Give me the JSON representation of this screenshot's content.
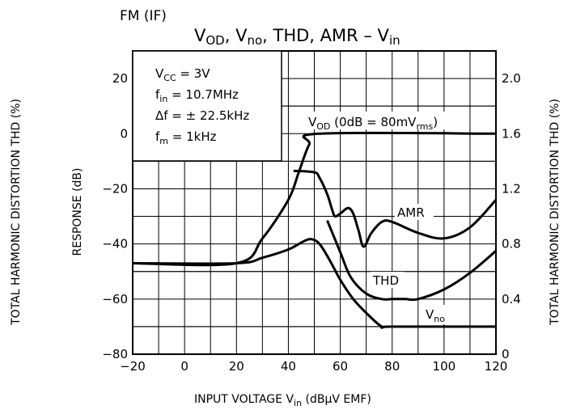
{
  "chart_data": {
    "type": "line",
    "header": "FM (IF)",
    "title": {
      "p1": "V",
      "p1sub": "OD",
      "p2": ", V",
      "p2sub": "no",
      "p3": ", THD, AMR  –  V",
      "p3sub": "in"
    },
    "xlabel": {
      "p1": "INPUT VOLTAGE   V",
      "sub": "in",
      "p2": "   (dBμV EMF)"
    },
    "ylabel_left": "RESPONSE   (dB)",
    "ylabel_right": "TOTAL HARMONIC DISTORTION   THD   (%)",
    "ylabel_outer": "TOTAL HARMONIC DISTORTION   THD   (%)",
    "xlim": [
      -20,
      120
    ],
    "ylim_left": [
      -80,
      30
    ],
    "ylim_right": [
      0,
      2.2
    ],
    "x_ticks": [
      "−20",
      "0",
      "20",
      "40",
      "60",
      "80",
      "100",
      "120"
    ],
    "y_ticks_left": [
      "20",
      "0",
      "−20",
      "−40",
      "−60",
      "−80"
    ],
    "y_ticks_right": [
      "2.0",
      "1.6",
      "1.2",
      "0.8",
      "0.4",
      "0"
    ],
    "conditions": [
      {
        "p1": "V",
        "sub": "CC",
        "p2": " = 3V"
      },
      {
        "p1": "f",
        "sub": "in",
        "p2": " = 10.7MHz"
      },
      {
        "p1": "Δf = ± 22.5kHz",
        "sub": "",
        "p2": ""
      },
      {
        "p1": "f",
        "sub": "m",
        "p2": " = 1kHz"
      }
    ],
    "grid": true,
    "series": [
      {
        "name": "V_OD",
        "label": {
          "p1": "V",
          "sub": "OD",
          "p2": " (0dB = 80mV",
          "sub2": "rms",
          "p3": ")"
        },
        "x": [
          -20,
          20,
          30,
          40,
          44,
          48,
          52,
          120
        ],
        "y": [
          -47,
          -47,
          -38,
          -24,
          -14,
          -4,
          0,
          0
        ]
      },
      {
        "name": "AMR",
        "label": {
          "p1": "AMR",
          "sub": "",
          "p2": ""
        },
        "x": [
          42,
          50,
          52,
          55,
          57,
          58,
          60,
          63,
          65,
          67,
          69,
          72,
          76,
          80,
          90,
          100,
          110,
          120
        ],
        "y": [
          -13.5,
          -14,
          -16,
          -22,
          -28,
          -30,
          -29,
          -27,
          -29,
          -35,
          -41,
          -36,
          -32,
          -32,
          -36,
          -38,
          -34,
          -24
        ]
      },
      {
        "name": "THD",
        "axis": "right",
        "label": {
          "p1": "THD",
          "sub": "",
          "p2": ""
        },
        "x": [
          55,
          60,
          64,
          70,
          76,
          80,
          85,
          90,
          100,
          110,
          120
        ],
        "y": [
          0.97,
          0.74,
          0.56,
          0.44,
          0.4,
          0.4,
          0.4,
          0.4,
          0.47,
          0.59,
          0.75
        ]
      },
      {
        "name": "V_no",
        "label": {
          "p1": "V",
          "sub": "no",
          "p2": ""
        },
        "x": [
          -20,
          20,
          30,
          40,
          46,
          49,
          52,
          56,
          60,
          65,
          70,
          76,
          80,
          120
        ],
        "y": [
          -47,
          -47,
          -45,
          -42,
          -39,
          -38.3,
          -40,
          -46,
          -53,
          -60,
          -65,
          -70,
          -70,
          -70
        ]
      }
    ]
  }
}
